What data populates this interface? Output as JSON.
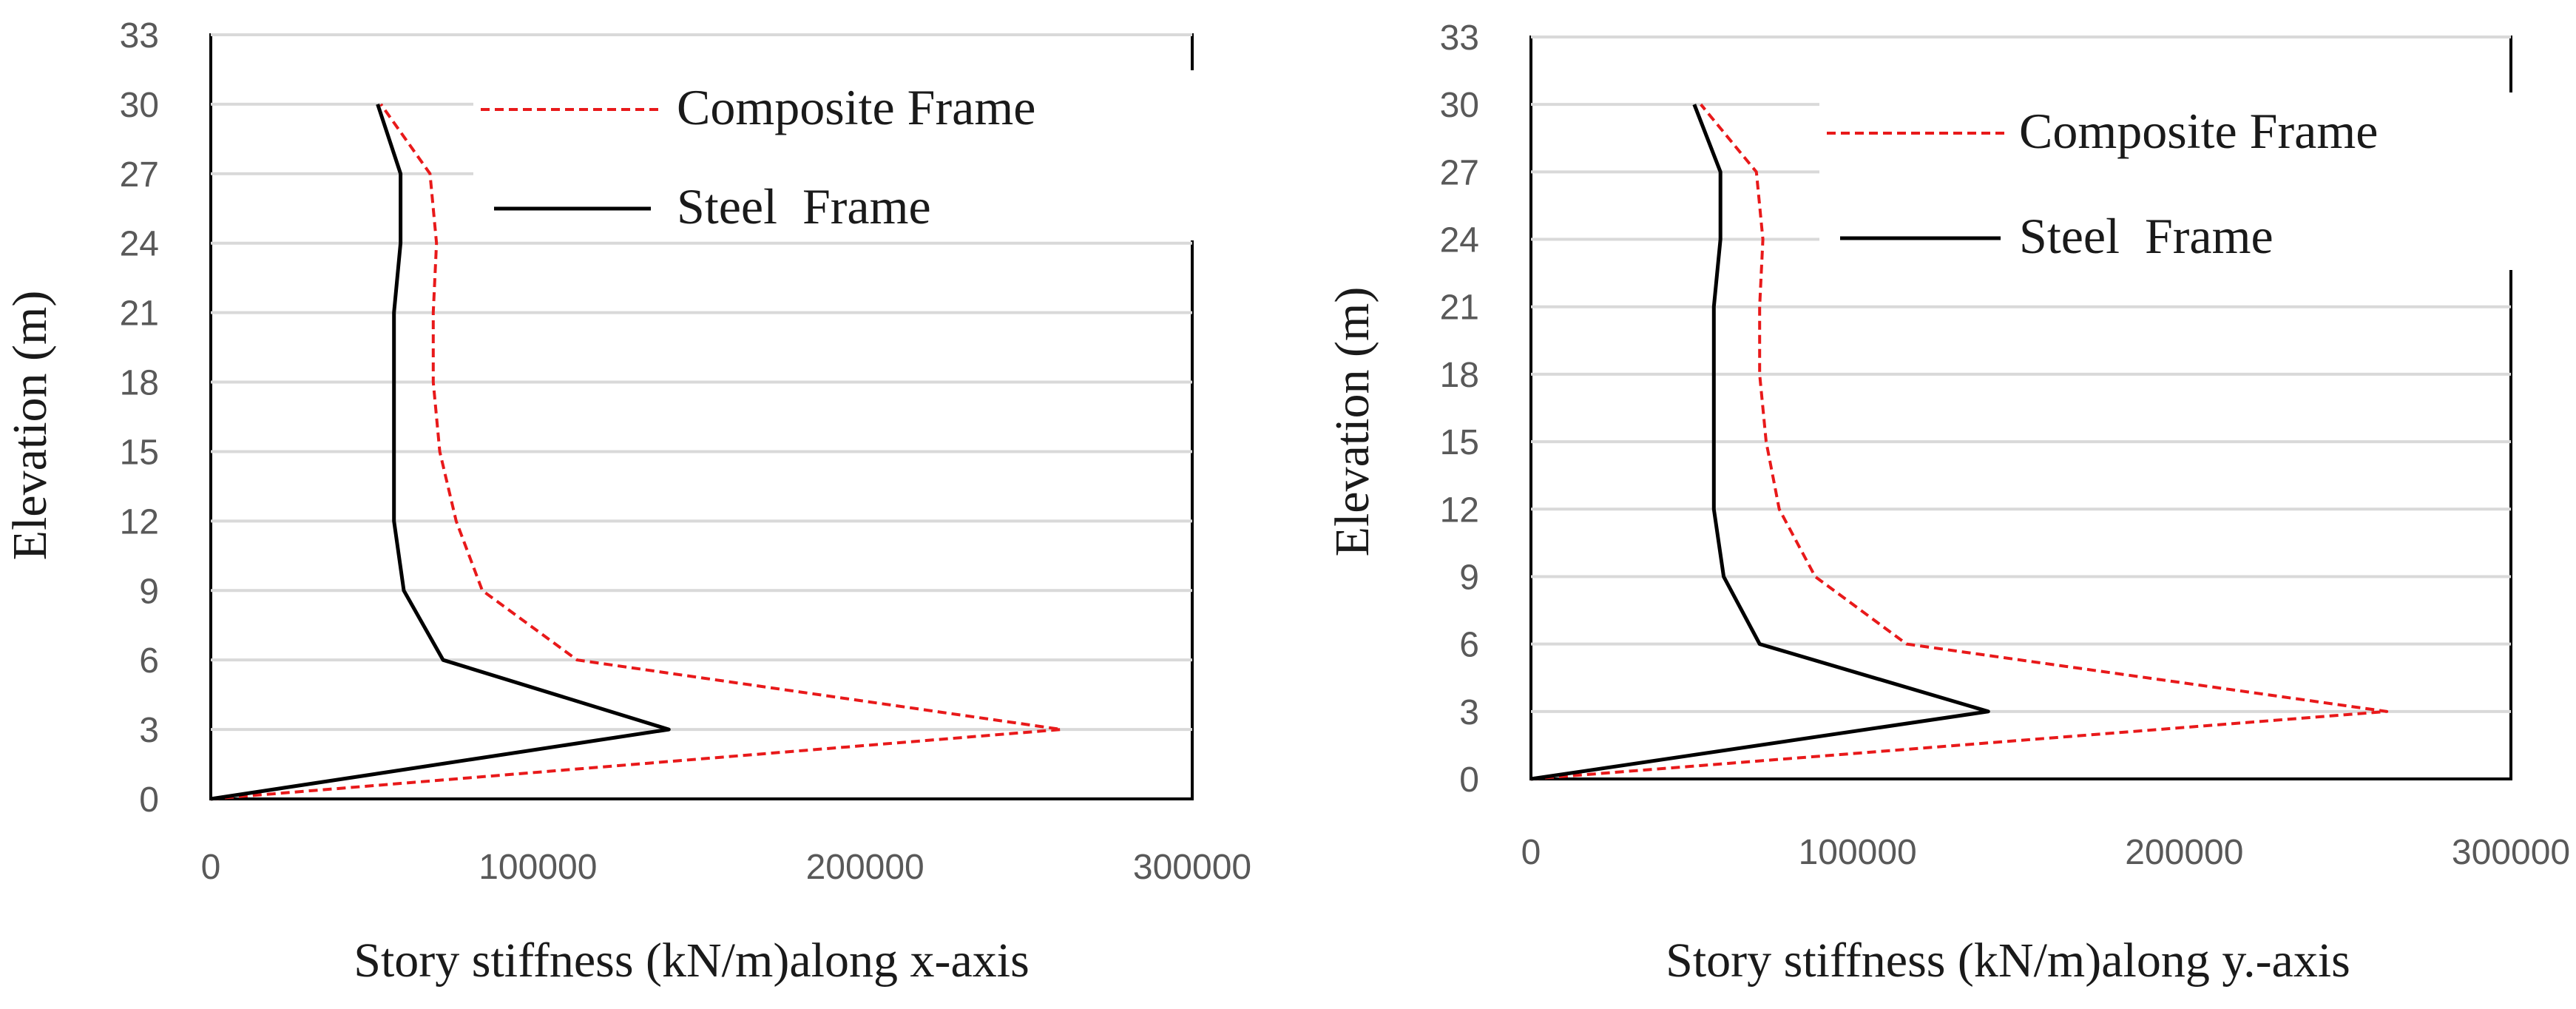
{
  "colors": {
    "composite": "#e8191a",
    "steel": "#000000",
    "grid": "#d9d9d9",
    "plot_border": "#000000",
    "tick_text": "#595959"
  },
  "chart_data": [
    {
      "type": "line",
      "xlabel": "Story stiffness (kN/m)along x-axis",
      "ylabel": "Elevation (m)",
      "xlim": [
        0,
        300000
      ],
      "ylim": [
        0,
        33
      ],
      "x_ticks": [
        "0",
        "100000",
        "200000",
        "300000"
      ],
      "y_ticks": [
        "0",
        "3",
        "6",
        "9",
        "12",
        "15",
        "18",
        "21",
        "24",
        "27",
        "30",
        "33"
      ],
      "grid": "horizontal",
      "legend": "top-right",
      "series": [
        {
          "name": "Composite Frame",
          "style": "dashed",
          "color": "#e8191a",
          "points": [
            [
              0,
              0
            ],
            [
              260000,
              3
            ],
            [
              112000,
              6
            ],
            [
              83000,
              9
            ],
            [
              75000,
              12
            ],
            [
              70000,
              15
            ],
            [
              68000,
              18
            ],
            [
              68000,
              21
            ],
            [
              69000,
              24
            ],
            [
              67000,
              27
            ],
            [
              52000,
              30
            ]
          ]
        },
        {
          "name": "Steel  Frame",
          "style": "solid",
          "color": "#000000",
          "points": [
            [
              0,
              0
            ],
            [
              140000,
              3
            ],
            [
              71000,
              6
            ],
            [
              59000,
              9
            ],
            [
              56000,
              12
            ],
            [
              56000,
              15
            ],
            [
              56000,
              18
            ],
            [
              56000,
              21
            ],
            [
              58000,
              24
            ],
            [
              58000,
              27
            ],
            [
              51000,
              30
            ]
          ]
        }
      ]
    },
    {
      "type": "line",
      "xlabel": "Story stiffness (kN/m)along y.-axis",
      "ylabel": "Elevation (m)",
      "xlim": [
        0,
        300000
      ],
      "ylim": [
        0,
        33
      ],
      "x_ticks": [
        "0",
        "100000",
        "200000",
        "300000"
      ],
      "y_ticks": [
        "0",
        "3",
        "6",
        "9",
        "12",
        "15",
        "18",
        "21",
        "24",
        "27",
        "30",
        "33"
      ],
      "grid": "horizontal",
      "legend": "top-right",
      "series": [
        {
          "name": "Composite Frame",
          "style": "dashed",
          "color": "#e8191a",
          "points": [
            [
              0,
              0
            ],
            [
              262000,
              3
            ],
            [
              115000,
              6
            ],
            [
              87000,
              9
            ],
            [
              76000,
              12
            ],
            [
              72000,
              15
            ],
            [
              70000,
              18
            ],
            [
              70000,
              21
            ],
            [
              71000,
              24
            ],
            [
              69000,
              27
            ],
            [
              52000,
              30
            ]
          ]
        },
        {
          "name": "Steel  Frame",
          "style": "solid",
          "color": "#000000",
          "points": [
            [
              0,
              0
            ],
            [
              140000,
              3
            ],
            [
              70000,
              6
            ],
            [
              59000,
              9
            ],
            [
              56000,
              12
            ],
            [
              56000,
              15
            ],
            [
              56000,
              18
            ],
            [
              56000,
              21
            ],
            [
              58000,
              24
            ],
            [
              58000,
              27
            ],
            [
              50000,
              30
            ]
          ]
        }
      ]
    }
  ]
}
